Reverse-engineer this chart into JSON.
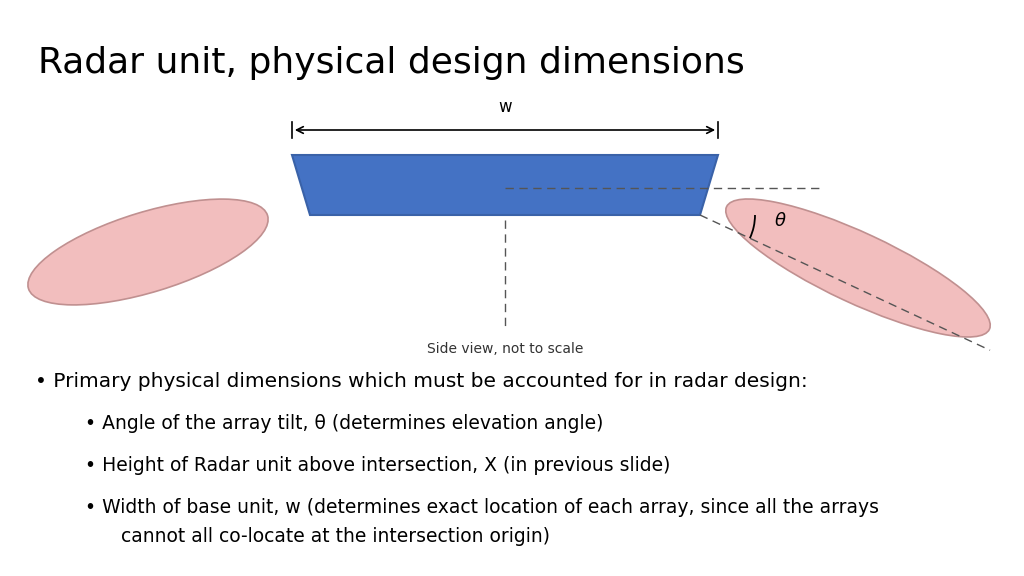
{
  "title": "Radar unit, physical design dimensions",
  "title_fontsize": 26,
  "background_color": "#ffffff",
  "box_color": "#4472C4",
  "box_edge_color": "#3A62A8",
  "ellipse_color": "#F2BEBE",
  "ellipse_edge_color": "#C09090",
  "caption": "Side view, not to scale",
  "caption_fontsize": 10,
  "theta_label": "θ",
  "w_label": "w",
  "bullet_main": "• Primary physical dimensions which must be accounted for in radar design:",
  "bullet_1": "• Angle of the array tilt, θ (determines elevation angle)",
  "bullet_2": "• Height of Radar unit above intersection, X (in previous slide)",
  "bullet_3a": "• Width of base unit, w (determines exact location of each array, since all the arrays",
  "bullet_3b": "      cannot all co-locate at the intersection origin)",
  "text_fontsize": 14.5,
  "sub_bullet_fontsize": 13.5
}
